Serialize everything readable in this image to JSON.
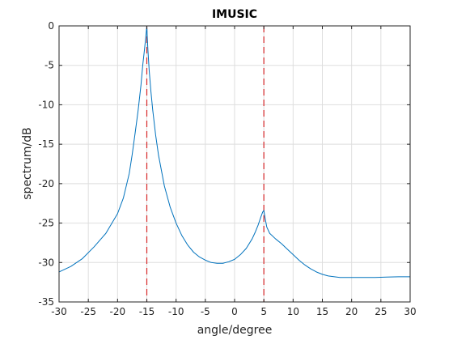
{
  "chart_data": {
    "type": "line",
    "title": "IMUSIC",
    "xlabel": "angle/degree",
    "ylabel": "spectrum/dB",
    "xlim": [
      -30,
      30
    ],
    "ylim": [
      -35,
      0
    ],
    "xticks": [
      -30,
      -25,
      -20,
      -15,
      -10,
      -5,
      0,
      5,
      10,
      15,
      20,
      25,
      30
    ],
    "yticks": [
      0,
      -5,
      -10,
      -15,
      -20,
      -25,
      -30,
      -35
    ],
    "xtick_labels": [
      "-30",
      "-25",
      "-20",
      "-15",
      "-10",
      "-5",
      "0",
      "5",
      "10",
      "15",
      "20",
      "25",
      "30"
    ],
    "ytick_labels": [
      "0",
      "-5",
      "-10",
      "-15",
      "-20",
      "-25",
      "-30",
      "-35"
    ],
    "grid": true,
    "series": [
      {
        "color": "#0072bd",
        "style": "solid",
        "x": [
          -30,
          -28,
          -26,
          -24,
          -22,
          -20,
          -19,
          -18,
          -17.5,
          -17,
          -16.5,
          -16,
          -15.7,
          -15.4,
          -15.2,
          -15.1,
          -15,
          -14.9,
          -14.8,
          -14.6,
          -14.3,
          -14,
          -13.5,
          -13,
          -12,
          -11,
          -10,
          -9,
          -8,
          -7,
          -6,
          -5,
          -4,
          -3,
          -2,
          -1,
          0,
          1,
          2,
          3,
          3.5,
          4,
          4.5,
          4.8,
          5,
          5.2,
          5.5,
          6,
          7,
          8,
          9,
          10,
          11,
          12,
          13,
          14,
          15,
          16,
          18,
          20,
          22,
          24,
          26,
          28,
          30
        ],
        "y": [
          -31.2,
          -30.5,
          -29.5,
          -28.0,
          -26.3,
          -23.8,
          -21.8,
          -18.7,
          -16.3,
          -13.6,
          -10.8,
          -7.5,
          -5.0,
          -3.0,
          -1.6,
          -0.8,
          0,
          -1.8,
          -3.2,
          -5.6,
          -8.3,
          -10.6,
          -13.8,
          -16.4,
          -20.3,
          -23.0,
          -25.0,
          -26.6,
          -27.8,
          -28.7,
          -29.3,
          -29.7,
          -30.0,
          -30.1,
          -30.1,
          -29.9,
          -29.6,
          -29.0,
          -28.2,
          -27.0,
          -26.2,
          -25.3,
          -24.2,
          -23.6,
          -23.4,
          -24.3,
          -25.5,
          -26.3,
          -27.0,
          -27.6,
          -28.3,
          -29.0,
          -29.7,
          -30.3,
          -30.8,
          -31.2,
          -31.5,
          -31.7,
          -31.9,
          -31.9,
          -31.9,
          -31.9,
          -31.85,
          -31.8,
          -31.8
        ]
      }
    ],
    "vlines": [
      {
        "x": -15,
        "color": "#d62728",
        "style": "dashed"
      },
      {
        "x": 5,
        "color": "#d62728",
        "style": "dashed"
      }
    ]
  }
}
